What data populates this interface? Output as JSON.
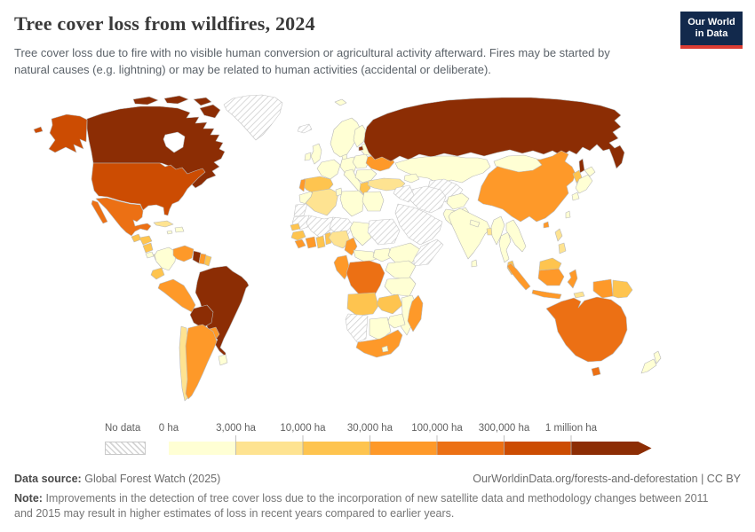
{
  "header": {
    "title": "Tree cover loss from wildfires, 2024",
    "subtitle": "Tree cover loss due to fire with no visible human conversion or agricultural activity afterward. Fires may be started by natural causes (e.g. lightning) or may be related to human activities (accidental or deliberate).",
    "logo": {
      "line1": "Our World",
      "line2": "in Data",
      "bg_color": "#12294c",
      "accent_color": "#dc3c32"
    }
  },
  "legend": {
    "no_data_label": "No data",
    "tick_labels": [
      "0 ha",
      "3,000 ha",
      "10,000 ha",
      "30,000 ha",
      "100,000 ha",
      "300,000 ha",
      "1 million ha"
    ],
    "bin_colors": [
      "#ffffd4",
      "#fee391",
      "#fec44f",
      "#fe9929",
      "#ec7014",
      "#cc4c02",
      "#8c2d04"
    ]
  },
  "footer": {
    "data_source_label": "Data source:",
    "data_source_value": "Global Forest Watch (2025)",
    "link_text": "OurWorldinData.org/forests-and-deforestation | CC BY",
    "note_label": "Note:",
    "note_text": "Improvements in the detection of tree cover loss due to the incorporation of new satellite data and methodology changes between 2011 and 2015 may result in higher estimates of loss in recent years compared to earlier years."
  },
  "chart_data": {
    "type": "choropleth_map",
    "title": "Tree cover loss from wildfires, 2024",
    "unit": "hectares of tree cover loss",
    "year": "2024",
    "scale": {
      "kind": "log-binned sequential (YlOrBr)",
      "bin_edges_labels": [
        "0 ha",
        "3,000 ha",
        "10,000 ha",
        "30,000 ha",
        "100,000 ha",
        "300,000 ha",
        "1 million ha"
      ],
      "bin_ranges": [
        "0–3,000 ha",
        "3,000–10,000 ha",
        "10,000–30,000 ha",
        "30,000–100,000 ha",
        "100,000–300,000 ha",
        "300,000 ha–1 million ha",
        "≥1 million ha"
      ],
      "no_data": "hatched gray"
    },
    "regions": [
      {
        "id": "canada",
        "name": "Canada",
        "bin": 6
      },
      {
        "id": "united-states",
        "name": "United States",
        "bin": 5
      },
      {
        "id": "greenland",
        "name": "Greenland",
        "bin": null
      },
      {
        "id": "iceland",
        "name": "Iceland",
        "bin": null
      },
      {
        "id": "mexico",
        "name": "Mexico",
        "bin": 4
      },
      {
        "id": "guatemala",
        "name": "Guatemala",
        "bin": 2
      },
      {
        "id": "honduras",
        "name": "Honduras",
        "bin": 2
      },
      {
        "id": "nicaragua",
        "name": "Nicaragua",
        "bin": 2
      },
      {
        "id": "costa-rica",
        "name": "Costa Rica",
        "bin": 0
      },
      {
        "id": "panama",
        "name": "Panama",
        "bin": 1
      },
      {
        "id": "cuba",
        "name": "Cuba",
        "bin": 1
      },
      {
        "id": "hispaniola",
        "name": "Haiti and Dominican Republic",
        "bin": 0
      },
      {
        "id": "jamaica",
        "name": "Jamaica",
        "bin": 0
      },
      {
        "id": "colombia",
        "name": "Colombia",
        "bin": 0
      },
      {
        "id": "venezuela",
        "name": "Venezuela",
        "bin": 3
      },
      {
        "id": "guyana",
        "name": "Guyana",
        "bin": 6
      },
      {
        "id": "suriname",
        "name": "Suriname",
        "bin": 3
      },
      {
        "id": "french-guiana",
        "name": "French Guiana",
        "bin": 2
      },
      {
        "id": "brazil",
        "name": "Brazil",
        "bin": 6
      },
      {
        "id": "ecuador",
        "name": "Ecuador",
        "bin": 2
      },
      {
        "id": "peru",
        "name": "Peru",
        "bin": 3
      },
      {
        "id": "bolivia",
        "name": "Bolivia",
        "bin": 6
      },
      {
        "id": "paraguay",
        "name": "Paraguay",
        "bin": 3
      },
      {
        "id": "chile",
        "name": "Chile",
        "bin": 1
      },
      {
        "id": "argentina",
        "name": "Argentina",
        "bin": 3
      },
      {
        "id": "uruguay",
        "name": "Uruguay",
        "bin": 0
      },
      {
        "id": "uk",
        "name": "United Kingdom",
        "bin": 0
      },
      {
        "id": "ireland",
        "name": "Ireland",
        "bin": 0
      },
      {
        "id": "scandinavia",
        "name": "Norway and Sweden",
        "bin": 0
      },
      {
        "id": "finland",
        "name": "Finland",
        "bin": 0
      },
      {
        "id": "svalbard",
        "name": "Svalbard",
        "bin": 0
      },
      {
        "id": "denmark",
        "name": "Denmark",
        "bin": 0
      },
      {
        "id": "germany",
        "name": "Germany",
        "bin": 0
      },
      {
        "id": "france",
        "name": "France",
        "bin": 0
      },
      {
        "id": "spain",
        "name": "Spain",
        "bin": 2
      },
      {
        "id": "portugal",
        "name": "Portugal",
        "bin": 3
      },
      {
        "id": "italy",
        "name": "Italy",
        "bin": 0
      },
      {
        "id": "poland",
        "name": "Poland",
        "bin": 0
      },
      {
        "id": "baltics-belarus",
        "name": "Baltic states and Belarus",
        "bin": 0
      },
      {
        "id": "ukraine",
        "name": "Ukraine",
        "bin": 3
      },
      {
        "id": "romania-balkans",
        "name": "Romania and Balkans",
        "bin": 0
      },
      {
        "id": "greece",
        "name": "Greece",
        "bin": 2
      },
      {
        "id": "turkey",
        "name": "Turkey",
        "bin": 1
      },
      {
        "id": "russia",
        "name": "Russia",
        "bin": 6
      },
      {
        "id": "kazakhstan",
        "name": "Kazakhstan",
        "bin": 0
      },
      {
        "id": "caucasus",
        "name": "Caucasus",
        "bin": 0
      },
      {
        "id": "uzbekistan-turkmenistan",
        "name": "Uzbekistan and Turkmenistan",
        "bin": null
      },
      {
        "id": "iran",
        "name": "Iran",
        "bin": null
      },
      {
        "id": "iraq-syria",
        "name": "Iraq and Syria",
        "bin": null
      },
      {
        "id": "arabian-peninsula",
        "name": "Arabian Peninsula",
        "bin": null
      },
      {
        "id": "afghanistan",
        "name": "Afghanistan",
        "bin": 0
      },
      {
        "id": "pakistan",
        "name": "Pakistan",
        "bin": 0
      },
      {
        "id": "india",
        "name": "India",
        "bin": 0
      },
      {
        "id": "sri-lanka",
        "name": "Sri Lanka",
        "bin": 0
      },
      {
        "id": "nepal",
        "name": "Nepal",
        "bin": 0
      },
      {
        "id": "bangladesh",
        "name": "Bangladesh",
        "bin": 1
      },
      {
        "id": "myanmar",
        "name": "Myanmar",
        "bin": 0
      },
      {
        "id": "thailand",
        "name": "Thailand",
        "bin": 0
      },
      {
        "id": "laos-vietnam",
        "name": "Laos, Vietnam and Cambodia",
        "bin": 0
      },
      {
        "id": "malaysia-peninsular",
        "name": "Malaysia (peninsular)",
        "bin": 2
      },
      {
        "id": "china",
        "name": "China",
        "bin": 3
      },
      {
        "id": "mongolia",
        "name": "Mongolia",
        "bin": 0
      },
      {
        "id": "north-korea",
        "name": "North Korea",
        "bin": 2
      },
      {
        "id": "south-korea",
        "name": "South Korea",
        "bin": 0
      },
      {
        "id": "japan",
        "name": "Japan",
        "bin": 0
      },
      {
        "id": "taiwan",
        "name": "Taiwan",
        "bin": 0
      },
      {
        "id": "philippines",
        "name": "Philippines",
        "bin": 1
      },
      {
        "id": "indonesia",
        "name": "Indonesia",
        "bin": 3
      },
      {
        "id": "malaysia-borneo",
        "name": "Malaysia (Borneo)",
        "bin": 2
      },
      {
        "id": "papua-new-guinea",
        "name": "Papua New Guinea",
        "bin": 2
      },
      {
        "id": "timor",
        "name": "Timor-Leste",
        "bin": 1
      },
      {
        "id": "australia",
        "name": "Australia",
        "bin": 4
      },
      {
        "id": "new-zealand",
        "name": "New Zealand",
        "bin": 0
      },
      {
        "id": "morocco",
        "name": "Morocco",
        "bin": 0
      },
      {
        "id": "western-sahara",
        "name": "Western Sahara",
        "bin": null
      },
      {
        "id": "mauritania",
        "name": "Mauritania",
        "bin": null
      },
      {
        "id": "mali",
        "name": "Mali",
        "bin": null
      },
      {
        "id": "niger",
        "name": "Niger",
        "bin": null
      },
      {
        "id": "chad",
        "name": "Chad",
        "bin": 0
      },
      {
        "id": "sudan",
        "name": "Sudan",
        "bin": null
      },
      {
        "id": "algeria",
        "name": "Algeria",
        "bin": 1
      },
      {
        "id": "tunisia",
        "name": "Tunisia",
        "bin": 0
      },
      {
        "id": "libya",
        "name": "Libya",
        "bin": 0
      },
      {
        "id": "egypt",
        "name": "Egypt",
        "bin": 0
      },
      {
        "id": "senegal",
        "name": "Senegal",
        "bin": 2
      },
      {
        "id": "guinea",
        "name": "Guinea",
        "bin": 2
      },
      {
        "id": "sierra-leone-liberia",
        "name": "Sierra Leone and Liberia",
        "bin": 3
      },
      {
        "id": "cote-divoire",
        "name": "Côte d'Ivoire",
        "bin": 3
      },
      {
        "id": "ghana",
        "name": "Ghana",
        "bin": 2
      },
      {
        "id": "togo-benin",
        "name": "Togo and Benin",
        "bin": 2
      },
      {
        "id": "nigeria",
        "name": "Nigeria",
        "bin": 1
      },
      {
        "id": "cameroon",
        "name": "Cameroon",
        "bin": 3
      },
      {
        "id": "central-african-republic",
        "name": "Central African Republic",
        "bin": 0
      },
      {
        "id": "south-sudan",
        "name": "South Sudan",
        "bin": 0
      },
      {
        "id": "ethiopia",
        "name": "Ethiopia",
        "bin": 0
      },
      {
        "id": "somalia",
        "name": "Somalia",
        "bin": null
      },
      {
        "id": "uganda-kenya",
        "name": "Uganda and Kenya",
        "bin": 0
      },
      {
        "id": "tanzania",
        "name": "Tanzania",
        "bin": 0
      },
      {
        "id": "gabon-congo",
        "name": "Gabon and Congo",
        "bin": 3
      },
      {
        "id": "dr-congo",
        "name": "Democratic Republic of Congo",
        "bin": 4
      },
      {
        "id": "angola",
        "name": "Angola",
        "bin": 2
      },
      {
        "id": "zambia",
        "name": "Zambia",
        "bin": 2
      },
      {
        "id": "mozambique",
        "name": "Mozambique",
        "bin": 0
      },
      {
        "id": "zimbabwe",
        "name": "Zimbabwe",
        "bin": 0
      },
      {
        "id": "botswana",
        "name": "Botswana",
        "bin": 0
      },
      {
        "id": "namibia",
        "name": "Namibia",
        "bin": null
      },
      {
        "id": "south-africa",
        "name": "South Africa",
        "bin": 3
      },
      {
        "id": "lesotho",
        "name": "Lesotho",
        "bin": 0
      },
      {
        "id": "madagascar",
        "name": "Madagascar",
        "bin": 3
      }
    ]
  }
}
